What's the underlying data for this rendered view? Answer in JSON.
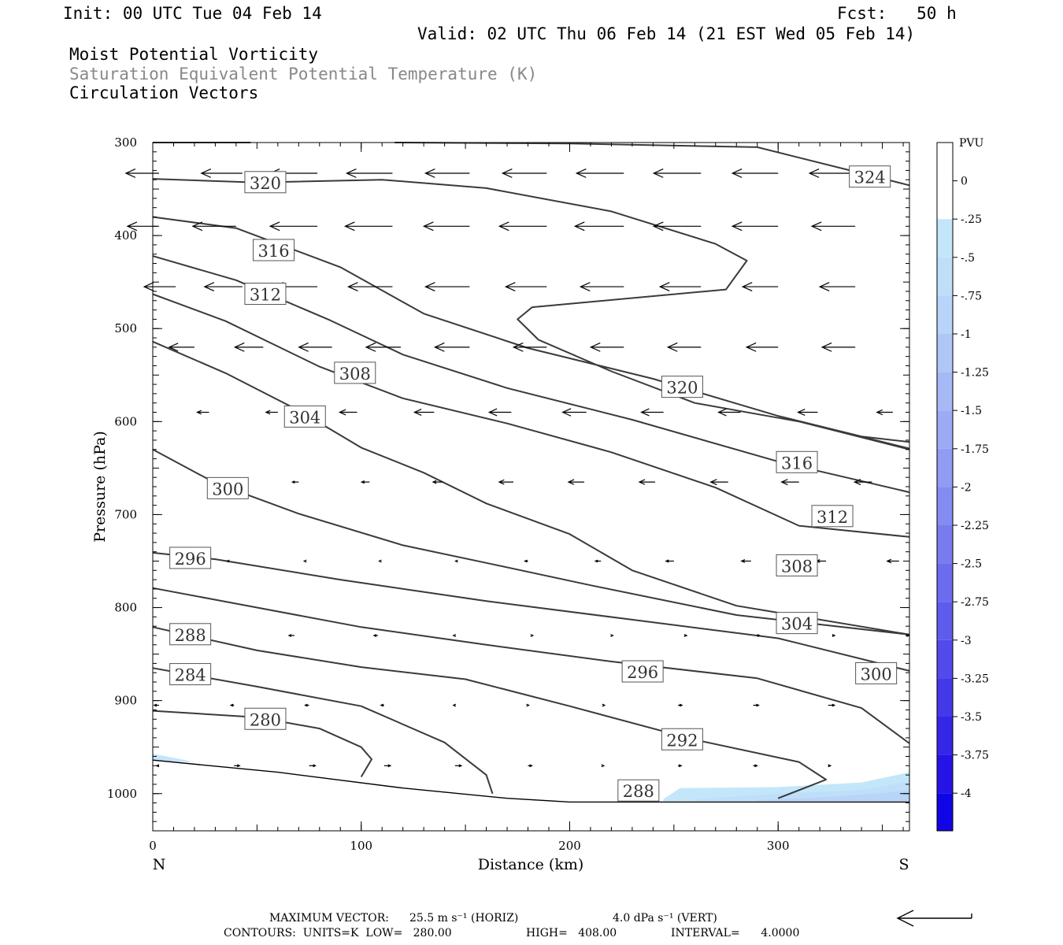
{
  "header": {
    "init": "Init: 00 UTC Tue 04 Feb 14",
    "fcst": "Fcst:   50 h",
    "valid": "Valid: 02 UTC Thu 06 Feb 14 (21 EST Wed 05 Feb 14)",
    "fields": [
      "Moist Potential Vorticity",
      "Saturation Equivalent Potential Temperature (K)",
      "Circulation Vectors"
    ]
  },
  "chart_data": {
    "type": "cross-section",
    "xlabel": "Distance (km)",
    "ylabel": "Pressure (hPa)",
    "xlim": [
      0,
      363
    ],
    "ylim": [
      1040,
      300
    ],
    "x_ticks": [
      0,
      100,
      200,
      300
    ],
    "y_ticks": [
      300,
      400,
      500,
      600,
      700,
      800,
      900,
      1000
    ],
    "x_end_labels": {
      "left": "N",
      "right": "S"
    },
    "colorbar": {
      "units": "PVU",
      "levels": [
        "0",
        "-.25",
        "-.5",
        "-.75",
        "-1",
        "-1.25",
        "-1.5",
        "-1.75",
        "-2",
        "-2.25",
        "-2.5",
        "-2.75",
        "-3",
        "-3.25",
        "-3.5",
        "-3.75",
        "-4"
      ],
      "colors": [
        "#ffffff",
        "#c4e6fa",
        "#bfdff9",
        "#b8d4f8",
        "#afc7f7",
        "#a6b9f5",
        "#9cabf4",
        "#919cf2",
        "#858cf1",
        "#797cef",
        "#6c6cee",
        "#5f5bec",
        "#524aea",
        "#4439e9",
        "#3527e7",
        "#2614e6",
        "#1205e5"
      ]
    },
    "contour_labels": [
      {
        "value": "320",
        "x": 54,
        "p": 343
      },
      {
        "value": "324",
        "x": 344,
        "p": 337
      },
      {
        "value": "316",
        "x": 58,
        "p": 416
      },
      {
        "value": "312",
        "x": 54,
        "p": 463
      },
      {
        "value": "308",
        "x": 97,
        "p": 548
      },
      {
        "value": "304",
        "x": 73,
        "p": 595
      },
      {
        "value": "320",
        "x": 254,
        "p": 563
      },
      {
        "value": "316",
        "x": 309,
        "p": 644
      },
      {
        "value": "312",
        "x": 326,
        "p": 702
      },
      {
        "value": "300",
        "x": 36,
        "p": 672
      },
      {
        "value": "296",
        "x": 18,
        "p": 747
      },
      {
        "value": "308",
        "x": 309,
        "p": 755
      },
      {
        "value": "304",
        "x": 309,
        "p": 817
      },
      {
        "value": "288",
        "x": 18,
        "p": 829
      },
      {
        "value": "284",
        "x": 18,
        "p": 872
      },
      {
        "value": "296",
        "x": 235,
        "p": 869
      },
      {
        "value": "300",
        "x": 347,
        "p": 871
      },
      {
        "value": "280",
        "x": 54,
        "p": 920
      },
      {
        "value": "292",
        "x": 254,
        "p": 942
      },
      {
        "value": "288",
        "x": 233,
        "p": 997
      }
    ],
    "contours": [
      {
        "value": 324,
        "pts": [
          [
            0,
            300
          ],
          [
            47,
            300
          ]
        ]
      },
      {
        "value": 324,
        "pts": [
          [
            116,
            300
          ],
          [
            200,
            301
          ],
          [
            290,
            305
          ],
          [
            340,
            333
          ],
          [
            363,
            346
          ]
        ]
      },
      {
        "value": 320,
        "pts": [
          [
            0,
            339
          ],
          [
            50,
            343
          ],
          [
            110,
            340
          ],
          [
            160,
            349
          ],
          [
            220,
            374
          ],
          [
            270,
            409
          ],
          [
            285,
            427
          ],
          [
            275,
            458
          ],
          [
            182,
            477
          ],
          [
            175,
            490
          ],
          [
            185,
            512
          ],
          [
            220,
            546
          ],
          [
            260,
            580
          ],
          [
            310,
            600
          ],
          [
            363,
            630
          ]
        ]
      },
      {
        "value": 316,
        "pts": [
          [
            0,
            380
          ],
          [
            40,
            392
          ],
          [
            90,
            434
          ],
          [
            130,
            484
          ],
          [
            180,
            521
          ],
          [
            240,
            554
          ],
          [
            300,
            594
          ],
          [
            363,
            629
          ]
        ]
      },
      {
        "value": 316,
        "pts": [
          [
            300,
            594
          ],
          [
            340,
            616
          ],
          [
            363,
            622
          ]
        ]
      },
      {
        "value": 312,
        "pts": [
          [
            0,
            422
          ],
          [
            40,
            448
          ],
          [
            85,
            491
          ],
          [
            120,
            528
          ],
          [
            170,
            564
          ],
          [
            230,
            598
          ],
          [
            300,
            643
          ],
          [
            363,
            676
          ]
        ]
      },
      {
        "value": 308,
        "pts": [
          [
            0,
            463
          ],
          [
            35,
            492
          ],
          [
            80,
            541
          ],
          [
            120,
            575
          ],
          [
            170,
            602
          ],
          [
            220,
            633
          ],
          [
            270,
            671
          ],
          [
            310,
            712
          ],
          [
            363,
            724
          ]
        ]
      },
      {
        "value": 304,
        "pts": [
          [
            0,
            514
          ],
          [
            35,
            548
          ],
          [
            70,
            588
          ],
          [
            100,
            628
          ],
          [
            130,
            655
          ],
          [
            160,
            688
          ],
          [
            200,
            721
          ],
          [
            230,
            760
          ],
          [
            280,
            798
          ],
          [
            363,
            829
          ]
        ]
      },
      {
        "value": 300,
        "pts": [
          [
            0,
            630
          ],
          [
            30,
            666
          ],
          [
            70,
            699
          ],
          [
            120,
            733
          ],
          [
            160,
            752
          ],
          [
            210,
            776
          ],
          [
            280,
            808
          ],
          [
            363,
            829
          ]
        ]
      },
      {
        "value": 296,
        "pts": [
          [
            0,
            741
          ],
          [
            30,
            748
          ],
          [
            90,
            770
          ],
          [
            160,
            793
          ],
          [
            230,
            813
          ],
          [
            300,
            833
          ],
          [
            363,
            868
          ]
        ]
      },
      {
        "value": 292,
        "pts": [
          [
            0,
            779
          ],
          [
            50,
            800
          ],
          [
            100,
            821
          ],
          [
            160,
            840
          ],
          [
            220,
            858
          ],
          [
            290,
            876
          ],
          [
            340,
            908
          ],
          [
            363,
            946
          ]
        ]
      },
      {
        "value": 288,
        "pts": [
          [
            0,
            821
          ],
          [
            50,
            846
          ],
          [
            100,
            864
          ],
          [
            150,
            877
          ],
          [
            200,
            906
          ],
          [
            260,
            942
          ],
          [
            310,
            966
          ],
          [
            323,
            985
          ],
          [
            300,
            1005
          ]
        ]
      },
      {
        "value": 284,
        "pts": [
          [
            0,
            865
          ],
          [
            50,
            885
          ],
          [
            100,
            906
          ],
          [
            140,
            945
          ],
          [
            160,
            980
          ],
          [
            163,
            1000
          ]
        ]
      },
      {
        "value": 280,
        "pts": [
          [
            0,
            911
          ],
          [
            50,
            918
          ],
          [
            80,
            930
          ],
          [
            100,
            950
          ],
          [
            105,
            963
          ],
          [
            100,
            982
          ]
        ]
      }
    ],
    "ground": {
      "pts": [
        [
          0,
          964
        ],
        [
          60,
          977
        ],
        [
          120,
          994
        ],
        [
          170,
          1005
        ],
        [
          200,
          1009
        ],
        [
          363,
          1009
        ]
      ]
    },
    "pv_shading": [
      {
        "level": "-.25",
        "pts": [
          [
            245,
            1006
          ],
          [
            253,
            994
          ],
          [
            300,
            993
          ],
          [
            340,
            988
          ],
          [
            363,
            977
          ],
          [
            363,
            1008
          ],
          [
            245,
            1008
          ]
        ]
      },
      {
        "level": "-.5",
        "pts": [
          [
            260,
            1006
          ],
          [
            300,
            1000
          ],
          [
            340,
            996
          ],
          [
            363,
            987
          ],
          [
            363,
            1008
          ],
          [
            260,
            1008
          ]
        ]
      },
      {
        "level": "-.75",
        "pts": [
          [
            290,
            1007
          ],
          [
            330,
            1003
          ],
          [
            363,
            997
          ],
          [
            363,
            1008
          ],
          [
            290,
            1008
          ]
        ]
      },
      {
        "level": "-.25",
        "pts": [
          [
            0,
            957
          ],
          [
            20,
            966
          ],
          [
            0,
            965
          ]
        ]
      }
    ],
    "vectors": [
      {
        "p": 333,
        "u": [
          [
            3,
            -42
          ],
          [
            43,
            -52
          ],
          [
            79,
            -60
          ],
          [
            115,
            -58
          ],
          [
            152,
            -56
          ],
          [
            189,
            -56
          ],
          [
            226,
            -60
          ],
          [
            263,
            -60
          ],
          [
            300,
            -58
          ],
          [
            337,
            -58
          ]
        ]
      },
      {
        "p": 390,
        "u": [
          [
            3,
            -40
          ],
          [
            40,
            -55
          ],
          [
            79,
            -60
          ],
          [
            115,
            -60
          ],
          [
            152,
            -58
          ],
          [
            189,
            -60
          ],
          [
            226,
            -62
          ],
          [
            263,
            -60
          ],
          [
            300,
            -58
          ],
          [
            337,
            -55
          ]
        ]
      },
      {
        "p": 455,
        "u": [
          [
            11,
            -40
          ],
          [
            43,
            -48
          ],
          [
            79,
            -55
          ],
          [
            115,
            -56
          ],
          [
            152,
            -56
          ],
          [
            189,
            -52
          ],
          [
            226,
            -55
          ],
          [
            263,
            -52
          ],
          [
            300,
            -45
          ],
          [
            337,
            -45
          ]
        ]
      },
      {
        "p": 520,
        "u": [
          [
            20,
            -32
          ],
          [
            53,
            -36
          ],
          [
            86,
            -42
          ],
          [
            119,
            -44
          ],
          [
            152,
            -44
          ],
          [
            189,
            -42
          ],
          [
            226,
            -42
          ],
          [
            263,
            -42
          ],
          [
            300,
            -40
          ],
          [
            337,
            -42
          ]
        ]
      },
      {
        "p": 590,
        "u": [
          [
            27,
            -15
          ],
          [
            60,
            -15
          ],
          [
            98,
            -22
          ],
          [
            135,
            -25
          ],
          [
            172,
            -28
          ],
          [
            208,
            -30
          ],
          [
            245,
            -28
          ],
          [
            282,
            -28
          ],
          [
            319,
            -25
          ],
          [
            355,
            -20
          ]
        ]
      },
      {
        "p": 665,
        "u": [
          [
            36,
            -5
          ],
          [
            70,
            -8
          ],
          [
            104,
            -10
          ],
          [
            139,
            -12
          ],
          [
            173,
            -18
          ],
          [
            207,
            -20
          ],
          [
            241,
            -20
          ],
          [
            276,
            -22
          ],
          [
            310,
            -22
          ],
          [
            345,
            -22
          ]
        ]
      },
      {
        "p": 750,
        "u": [
          [
            36,
            -1
          ],
          [
            73,
            -1
          ],
          [
            109,
            -1
          ],
          [
            146,
            -2
          ],
          [
            180,
            -4
          ],
          [
            215,
            -7
          ],
          [
            250,
            -10
          ],
          [
            287,
            -12
          ],
          [
            323,
            -12
          ],
          [
            358,
            -15
          ]
        ]
      },
      {
        "p": 830,
        "u": [
          [
            27,
            -5
          ],
          [
            68,
            -7
          ],
          [
            108,
            -5
          ],
          [
            145,
            -2
          ],
          [
            182,
            1
          ],
          [
            220,
            2
          ],
          [
            255,
            3
          ],
          [
            290,
            3
          ],
          [
            326,
            3
          ],
          [
            362,
            2
          ]
        ]
      },
      {
        "p": 905,
        "u": [
          [
            3,
            -6
          ],
          [
            39,
            -4
          ],
          [
            75,
            -5
          ],
          [
            111,
            -4
          ],
          [
            145,
            -2
          ],
          [
            180,
            1
          ],
          [
            216,
            2
          ],
          [
            252,
            5
          ],
          [
            288,
            7
          ],
          [
            324,
            8
          ]
        ]
      },
      {
        "p": 970,
        "u": [
          [
            3,
            -3
          ],
          [
            39,
            7
          ],
          [
            75,
            8
          ],
          [
            111,
            8
          ],
          [
            145,
            8
          ],
          [
            180,
            5
          ],
          [
            216,
            1
          ],
          [
            252,
            4
          ],
          [
            288,
            5
          ],
          [
            324,
            3
          ]
        ]
      }
    ]
  },
  "footer": {
    "line1_label": "MAXIMUM VECTOR:",
    "line1_horiz": "25.5 m s⁻¹ (HORIZ)",
    "line1_vert": "4.0 dPa s⁻¹ (VERT)",
    "line2_label": "CONTOURS:  UNITS=K  LOW=   280.00",
    "line2_high": "HIGH=   408.00",
    "line2_interval": "INTERVAL=      4.0000"
  }
}
